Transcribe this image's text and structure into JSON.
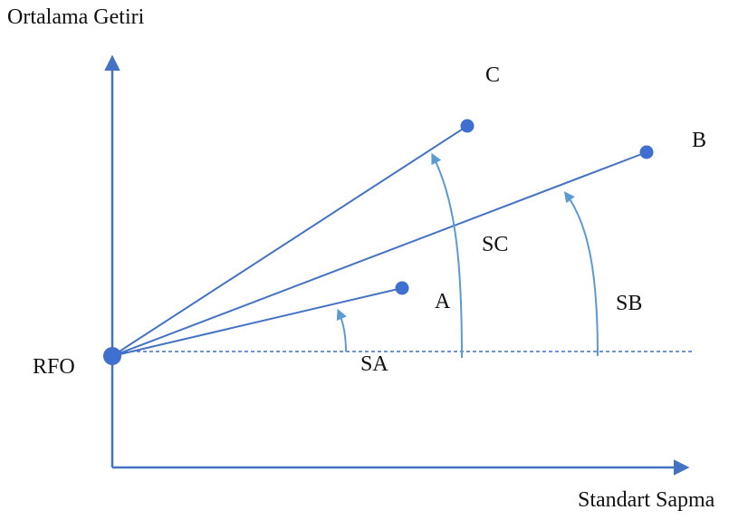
{
  "diagram": {
    "y_axis_label": "Ortalama Getiri",
    "x_axis_label": "Standart Sapma",
    "origin_label": "RFO",
    "portfolios": [
      {
        "point_label": "A",
        "angle_label": "SA"
      },
      {
        "point_label": "B",
        "angle_label": "SB"
      },
      {
        "point_label": "C",
        "angle_label": "SC"
      }
    ],
    "colors": {
      "axis": "#4472c4",
      "lines": "#4472c4",
      "points": "#3f6fcf",
      "arcs": "#5b9bd5",
      "text": "#111111"
    }
  }
}
